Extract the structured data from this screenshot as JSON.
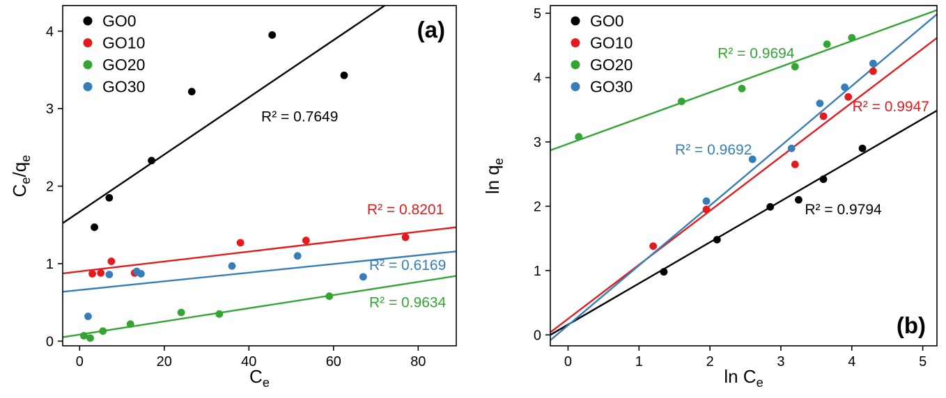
{
  "figure": {
    "background": "#ffffff",
    "series_colors": {
      "GO0": "#000000",
      "GO10": "#e41a1c",
      "GO20": "#33a532",
      "GO30": "#377eb8"
    }
  },
  "chart_data": [
    {
      "id": "a",
      "type": "scatter",
      "panel_label": "(a)",
      "panel_label_corner": "top-right",
      "xlabel_html": "C<sub>e</sub>",
      "ylabel_html": "C<sub>e</sub>/q<sub>e</sub>",
      "xlim": [
        -4,
        89
      ],
      "ylim": [
        -0.06,
        4.33
      ],
      "xticks": [
        0,
        20,
        40,
        60,
        80
      ],
      "yticks": [
        0,
        1,
        2,
        3,
        4
      ],
      "grid": false,
      "legend_position": "top-left",
      "series": [
        {
          "name": "GO0",
          "color": "#000000",
          "points": [
            [
              3.5,
              1.47
            ],
            [
              7,
              1.85
            ],
            [
              17,
              2.33
            ],
            [
              26.5,
              3.22
            ],
            [
              45.5,
              3.95
            ],
            [
              62.5,
              3.43
            ]
          ],
          "fit_line": {
            "slope": 0.0369,
            "intercept": 1.67
          },
          "r2_annotation": {
            "text": "R² = 0.7649",
            "x": 52,
            "y": 2.9
          }
        },
        {
          "name": "GO10",
          "color": "#e41a1c",
          "points": [
            [
              3,
              0.87
            ],
            [
              5,
              0.88
            ],
            [
              7.5,
              1.03
            ],
            [
              13,
              0.88
            ],
            [
              38,
              1.27
            ],
            [
              53.5,
              1.3
            ],
            [
              77,
              1.34
            ]
          ],
          "fit_line": {
            "slope": 0.0064,
            "intercept": 0.9
          },
          "r2_annotation": {
            "text": "R² = 0.8201",
            "x": 77,
            "y": 1.7
          }
        },
        {
          "name": "GO20",
          "color": "#33a532",
          "points": [
            [
              1,
              0.07
            ],
            [
              2.5,
              0.04
            ],
            [
              5.5,
              0.13
            ],
            [
              12,
              0.22
            ],
            [
              24,
              0.37
            ],
            [
              33,
              0.35
            ],
            [
              59,
              0.58
            ]
          ],
          "fit_line": {
            "slope": 0.0085,
            "intercept": 0.085
          },
          "r2_annotation": {
            "text": "R² = 0.9634",
            "x": 77.5,
            "y": 0.5
          }
        },
        {
          "name": "GO30",
          "color": "#377eb8",
          "points": [
            [
              2,
              0.32
            ],
            [
              7,
              0.86
            ],
            [
              13.5,
              0.9
            ],
            [
              14.5,
              0.87
            ],
            [
              36,
              0.97
            ],
            [
              51.5,
              1.1
            ],
            [
              67,
              0.83
            ]
          ],
          "fit_line": {
            "slope": 0.0056,
            "intercept": 0.66
          },
          "r2_annotation": {
            "text": "R² = 0.6169",
            "x": 77.5,
            "y": 0.98
          }
        }
      ]
    },
    {
      "id": "b",
      "type": "scatter",
      "panel_label": "(b)",
      "panel_label_corner": "bottom-right",
      "xlabel_html": "ln C<sub>e</sub>",
      "ylabel_html": "ln q<sub>e</sub>",
      "xlim": [
        -0.25,
        5.2
      ],
      "ylim": [
        -0.17,
        5.12
      ],
      "xticks": [
        0,
        1,
        2,
        3,
        4,
        5
      ],
      "yticks": [
        0,
        1,
        2,
        3,
        4,
        5
      ],
      "grid": false,
      "legend_position": "top-left",
      "series": [
        {
          "name": "GO0",
          "color": "#000000",
          "points": [
            [
              1.35,
              0.98
            ],
            [
              2.1,
              1.48
            ],
            [
              2.85,
              1.99
            ],
            [
              3.25,
              2.1
            ],
            [
              3.6,
              2.42
            ],
            [
              4.15,
              2.9
            ]
          ],
          "fit_line": {
            "slope": 0.64,
            "intercept": 0.16
          },
          "r2_annotation": {
            "text": "R² = 0.9794",
            "x": 3.88,
            "y": 1.95
          }
        },
        {
          "name": "GO10",
          "color": "#e41a1c",
          "points": [
            [
              1.2,
              1.38
            ],
            [
              1.95,
              1.95
            ],
            [
              3.2,
              2.65
            ],
            [
              3.6,
              3.4
            ],
            [
              3.95,
              3.7
            ],
            [
              4.3,
              4.1
            ]
          ],
          "fit_line": {
            "slope": 0.84,
            "intercept": 0.25
          },
          "r2_annotation": {
            "text": "R² = 0.9947",
            "x": 4.55,
            "y": 3.55
          }
        },
        {
          "name": "GO20",
          "color": "#33a532",
          "points": [
            [
              0.15,
              3.08
            ],
            [
              1.6,
              3.63
            ],
            [
              2.45,
              3.83
            ],
            [
              3.2,
              4.17
            ],
            [
              3.65,
              4.52
            ],
            [
              4.0,
              4.62
            ]
          ],
          "fit_line": {
            "slope": 0.4,
            "intercept": 2.97
          },
          "r2_annotation": {
            "text": "R² = 0.9694",
            "x": 2.65,
            "y": 4.38
          }
        },
        {
          "name": "GO30",
          "color": "#377eb8",
          "points": [
            [
              1.95,
              2.08
            ],
            [
              2.6,
              2.73
            ],
            [
              3.15,
              2.9
            ],
            [
              3.55,
              3.6
            ],
            [
              3.9,
              3.85
            ],
            [
              4.3,
              4.22
            ]
          ],
          "fit_line": {
            "slope": 0.93,
            "intercept": 0.15
          },
          "r2_annotation": {
            "text": "R² = 0.9692",
            "x": 2.05,
            "y": 2.88
          }
        }
      ]
    }
  ]
}
